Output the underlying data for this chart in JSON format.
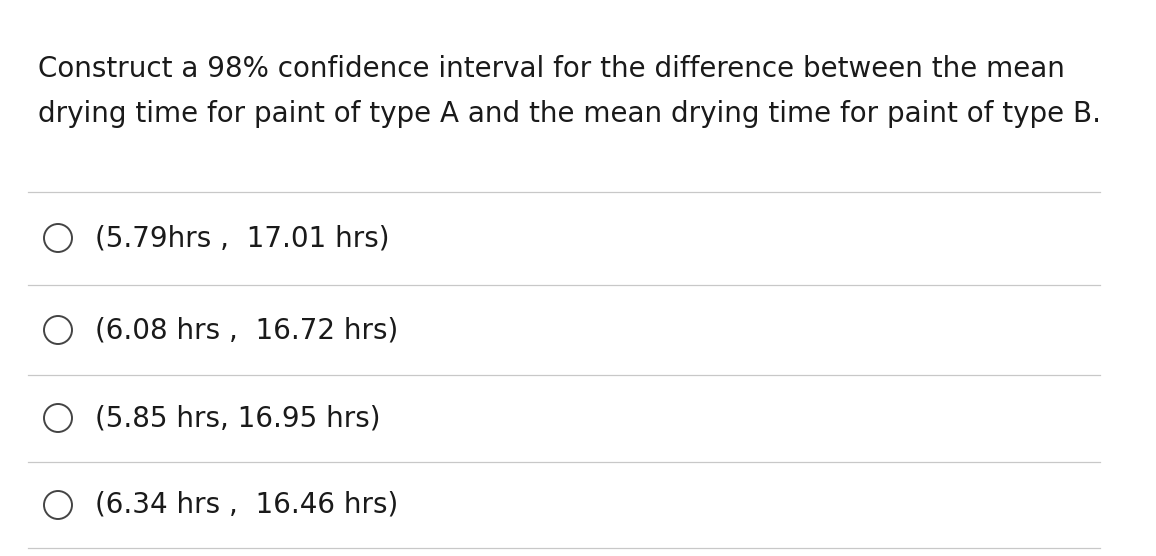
{
  "question_line1": "Construct a 98% confidence interval for the difference between the mean",
  "question_line2": "drying time for paint of type A and the mean drying time for paint of type B.",
  "options": [
    "(5.79hrs ,  17.01 hrs)",
    "(6.08 hrs ,  16.72 hrs)",
    "(5.85 hrs, 16.95 hrs)",
    "(6.34 hrs ,  16.46 hrs)"
  ],
  "background_color": "#ffffff",
  "text_color": "#1a1a1a",
  "line_color": "#c8c8c8",
  "circle_color": "#444444",
  "question_fontsize": 20,
  "option_fontsize": 20,
  "fig_width": 11.56,
  "fig_height": 5.56,
  "dpi": 100
}
